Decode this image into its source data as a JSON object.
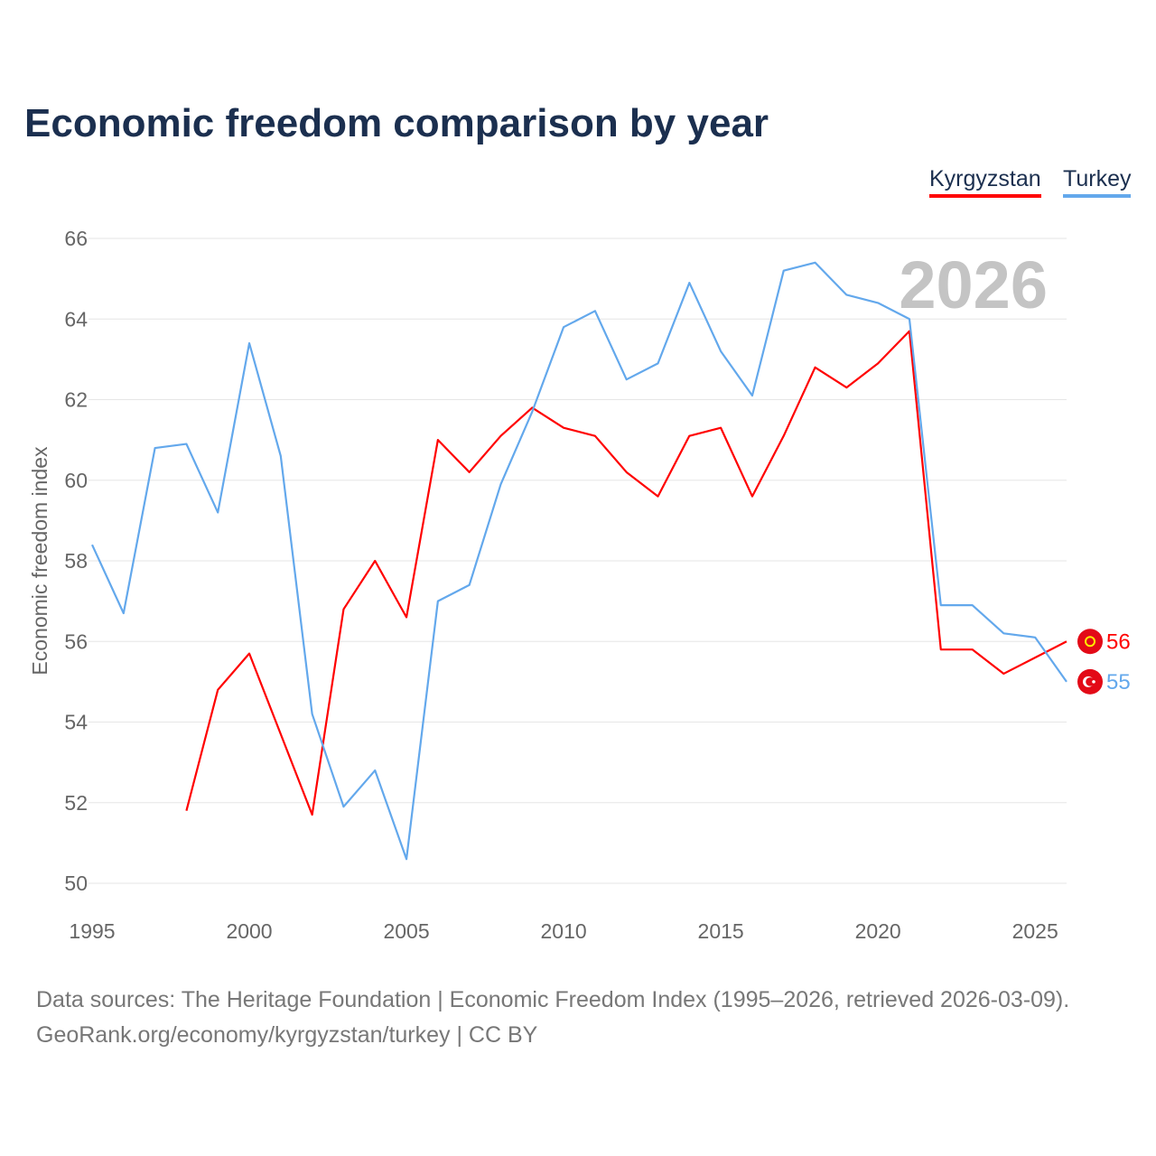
{
  "chart_data": {
    "type": "line",
    "title": "Economic freedom comparison by year",
    "xlabel": "",
    "ylabel": "Economic freedom index",
    "xlim": [
      1995,
      2026
    ],
    "ylim": [
      50,
      66
    ],
    "yticks": [
      50,
      52,
      54,
      56,
      58,
      60,
      62,
      64,
      66
    ],
    "xticks": [
      1995,
      2000,
      2005,
      2010,
      2015,
      2020,
      2025
    ],
    "grid": true,
    "legend_position": "top-right",
    "year_watermark": "2026",
    "series": [
      {
        "name": "Kyrgyzstan",
        "color": "#ff0000",
        "end_label": "56",
        "flag": "kyrgyzstan-flag-icon",
        "x": [
          1998,
          1999,
          2000,
          2001,
          2002,
          2003,
          2004,
          2005,
          2006,
          2007,
          2008,
          2009,
          2010,
          2011,
          2012,
          2013,
          2014,
          2015,
          2016,
          2017,
          2018,
          2019,
          2020,
          2021,
          2022,
          2023,
          2024,
          2025,
          2026
        ],
        "values": [
          51.8,
          54.8,
          55.7,
          53.7,
          51.7,
          56.8,
          58.0,
          56.6,
          61.0,
          60.2,
          61.1,
          61.8,
          61.3,
          61.1,
          60.2,
          59.6,
          61.1,
          61.3,
          59.6,
          61.1,
          62.8,
          62.3,
          62.9,
          63.7,
          55.8,
          55.8,
          55.2,
          55.6,
          56.0
        ]
      },
      {
        "name": "Turkey",
        "color": "#63a8ec",
        "end_label": "55",
        "flag": "turkey-flag-icon",
        "x": [
          1995,
          1996,
          1997,
          1998,
          1999,
          2000,
          2001,
          2002,
          2003,
          2004,
          2005,
          2006,
          2007,
          2008,
          2009,
          2010,
          2011,
          2012,
          2013,
          2014,
          2015,
          2016,
          2017,
          2018,
          2019,
          2020,
          2021,
          2022,
          2023,
          2024,
          2025,
          2026
        ],
        "values": [
          58.4,
          56.7,
          60.8,
          60.9,
          59.2,
          63.4,
          60.6,
          54.2,
          51.9,
          52.8,
          50.6,
          57.0,
          57.4,
          59.9,
          61.7,
          63.8,
          64.2,
          62.5,
          62.9,
          64.9,
          63.2,
          62.1,
          65.2,
          65.4,
          64.6,
          64.4,
          64.0,
          56.9,
          56.9,
          56.2,
          56.1,
          55.0
        ]
      }
    ]
  },
  "footer": {
    "line1": "Data sources: The Heritage Foundation | Economic Freedom Index (1995–2026, retrieved 2026-03-09).",
    "line2": "GeoRank.org/economy/kyrgyzstan/turkey | CC BY"
  }
}
